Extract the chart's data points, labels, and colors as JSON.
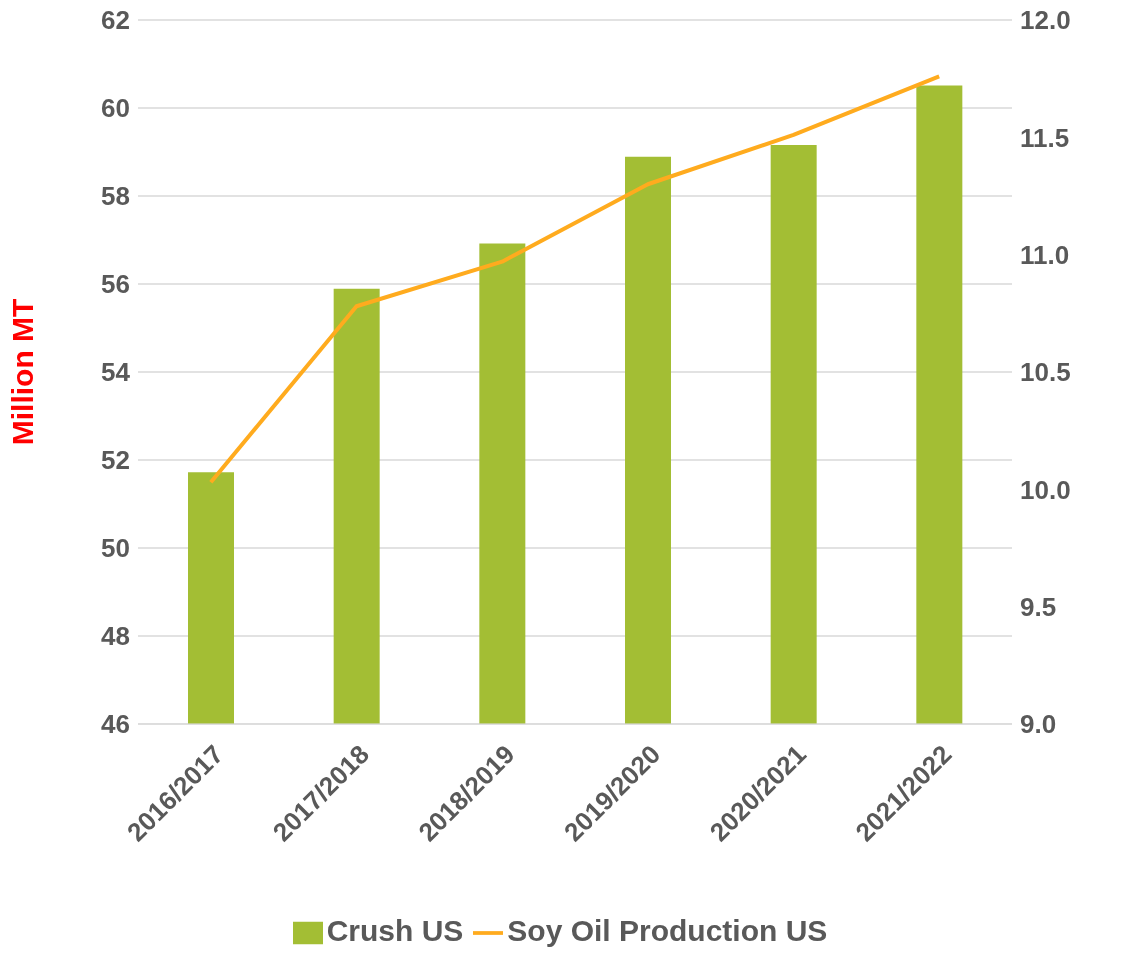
{
  "chart_data": {
    "type": "bar",
    "ylabel": "Million MT",
    "categories": [
      "2016/2017",
      "2017/2018",
      "2018/2019",
      "2019/2020",
      "2020/2021",
      "2021/2022"
    ],
    "series": [
      {
        "name": "Crush US",
        "color": "#a3be34",
        "values": [
          51.72,
          55.89,
          56.92,
          58.89,
          59.16,
          60.51
        ]
      },
      {
        "name": "Soy Oil Production US",
        "type": "line",
        "axis": "y2",
        "color": "#ffab1e",
        "values": [
          10.03,
          10.78,
          10.97,
          11.3,
          11.51,
          11.76
        ]
      }
    ],
    "ylim": [
      46,
      62
    ],
    "yticks": [
      46,
      48,
      50,
      52,
      54,
      56,
      58,
      60,
      62
    ],
    "y2lim": [
      9,
      12
    ],
    "y2ticks": [
      {
        "value": 9,
        "label": "9.0"
      },
      {
        "value": 9.5,
        "label": "9.5"
      },
      {
        "value": 10,
        "label": "10.0"
      },
      {
        "value": 10.5,
        "label": "10.5"
      },
      {
        "value": 11,
        "label": "11.0"
      },
      {
        "value": 11.5,
        "label": "11.5"
      },
      {
        "value": 12,
        "label": "12.0"
      }
    ],
    "grid": "y",
    "legend": "bottom",
    "marker": "none",
    "line_style": "solid"
  }
}
